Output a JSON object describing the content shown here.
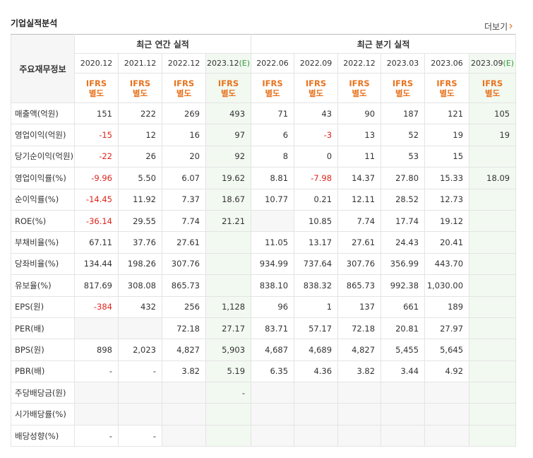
{
  "header": {
    "title": "기업실적분석",
    "more": "더보기"
  },
  "table": {
    "corner": "주요재무정보",
    "groups": [
      {
        "label": "최근 연간 실적",
        "span": 4
      },
      {
        "label": "최근 분기 실적",
        "span": 6
      }
    ],
    "columns": [
      {
        "period": "2020.12"
      },
      {
        "period": "2021.12"
      },
      {
        "period": "2022.12"
      },
      {
        "period": "2023.12",
        "estimate": "(E)"
      },
      {
        "period": "2022.06"
      },
      {
        "period": "2022.09"
      },
      {
        "period": "2022.12"
      },
      {
        "period": "2023.03"
      },
      {
        "period": "2023.06"
      },
      {
        "period": "2023.09",
        "estimate": "(E)"
      }
    ],
    "standards": [
      [
        "IFRS",
        "별도"
      ],
      [
        "IFRS",
        "별도"
      ],
      [
        "IFRS",
        "별도"
      ],
      [
        "IFRS",
        "별도"
      ],
      [
        "IFRS",
        "별도"
      ],
      [
        "IFRS",
        "별도"
      ],
      [
        "IFRS",
        "별도"
      ],
      [
        "IFRS",
        "별도"
      ],
      [
        "IFRS",
        "별도"
      ],
      [
        "IFRS",
        "별도"
      ]
    ],
    "rows": [
      {
        "label": "매출액(억원)",
        "cells": [
          "151",
          "222",
          "269",
          "493",
          "71",
          "43",
          "90",
          "187",
          "121",
          "105"
        ]
      },
      {
        "label": "영업이익(억원)",
        "cells": [
          "-15",
          "12",
          "16",
          "97",
          "6",
          "-3",
          "13",
          "52",
          "19",
          "19"
        ]
      },
      {
        "label": "당기순이익(억원)",
        "cells": [
          "-22",
          "26",
          "20",
          "92",
          "8",
          "0",
          "11",
          "53",
          "15",
          null
        ]
      },
      {
        "label": "영업이익률(%)",
        "cells": [
          "-9.96",
          "5.50",
          "6.07",
          "19.62",
          "8.81",
          "-7.98",
          "14.37",
          "27.80",
          "15.33",
          "18.09"
        ]
      },
      {
        "label": "순이익률(%)",
        "cells": [
          "-14.45",
          "11.92",
          "7.37",
          "18.67",
          "10.77",
          "0.21",
          "12.11",
          "28.52",
          "12.73",
          null
        ]
      },
      {
        "label": "ROE(%)",
        "cells": [
          "-36.14",
          "29.55",
          "7.74",
          "21.21",
          null,
          "10.85",
          "7.74",
          "17.74",
          "19.12",
          null
        ]
      },
      {
        "label": "부채비율(%)",
        "cells": [
          "67.11",
          "37.76",
          "27.61",
          null,
          "11.05",
          "13.17",
          "27.61",
          "24.43",
          "20.41",
          null
        ]
      },
      {
        "label": "당좌비율(%)",
        "cells": [
          "134.44",
          "198.26",
          "307.76",
          null,
          "934.99",
          "737.64",
          "307.76",
          "356.99",
          "443.70",
          null
        ]
      },
      {
        "label": "유보율(%)",
        "cells": [
          "817.69",
          "308.08",
          "865.73",
          null,
          "838.10",
          "838.32",
          "865.73",
          "992.38",
          "1,030.00",
          null
        ]
      },
      {
        "label": "EPS(원)",
        "cells": [
          "-384",
          "432",
          "256",
          "1,128",
          "96",
          "1",
          "137",
          "661",
          "189",
          null
        ]
      },
      {
        "label": "PER(배)",
        "cells": [
          null,
          null,
          "72.18",
          "27.17",
          "83.71",
          "57.17",
          "72.18",
          "20.81",
          "27.97",
          null
        ]
      },
      {
        "label": "BPS(원)",
        "cells": [
          "898",
          "2,023",
          "4,827",
          "5,903",
          "4,687",
          "4,689",
          "4,827",
          "5,455",
          "5,645",
          null
        ]
      },
      {
        "label": "PBR(배)",
        "cells": [
          "-",
          "-",
          "3.82",
          "5.19",
          "6.35",
          "4.36",
          "3.82",
          "3.44",
          "4.92",
          null
        ]
      },
      {
        "label": "주당배당금(원)",
        "cells": [
          null,
          null,
          null,
          "-",
          null,
          null,
          null,
          null,
          null,
          null
        ]
      },
      {
        "label": "시가배당률(%)",
        "cells": [
          null,
          null,
          null,
          null,
          null,
          null,
          null,
          null,
          null,
          null
        ]
      },
      {
        "label": "배당성향(%)",
        "cells": [
          "-",
          "-",
          null,
          null,
          null,
          null,
          null,
          null,
          null,
          null
        ]
      }
    ]
  }
}
